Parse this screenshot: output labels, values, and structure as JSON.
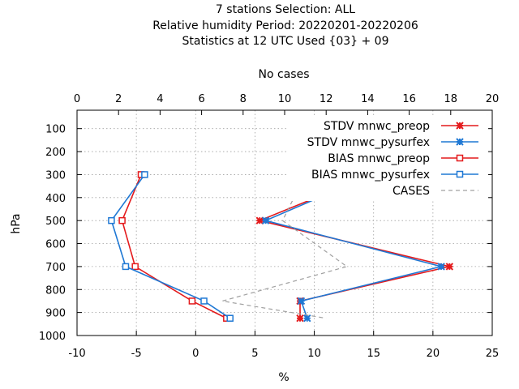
{
  "chart_data": {
    "type": "line",
    "title_lines": [
      "7 stations Selection: ALL",
      "Relative humidity  Period: 20220201-20220206",
      "Statistics at 12 UTC  Used {03} + 09"
    ],
    "xlabel": "%",
    "ylabel": "hPa",
    "x2label": "No cases",
    "xlim": [
      -10,
      25
    ],
    "xticks": [
      -10,
      -5,
      0,
      5,
      10,
      15,
      20,
      25
    ],
    "x2lim": [
      0,
      20
    ],
    "x2ticks": [
      0,
      2,
      4,
      6,
      8,
      10,
      12,
      14,
      16,
      18,
      20
    ],
    "ylim": [
      1000,
      20
    ],
    "yticks": [
      100,
      200,
      300,
      400,
      500,
      600,
      700,
      800,
      900,
      1000
    ],
    "grid": true,
    "legend_position": "top-right",
    "series": [
      {
        "name": "STDV mnwc_preop",
        "color": "#e41a1c",
        "marker": "x",
        "axis": "x",
        "points": [
          [
            14.9,
            300
          ],
          [
            5.4,
            500
          ],
          [
            21.4,
            700
          ],
          [
            8.8,
            850
          ],
          [
            8.8,
            925
          ]
        ]
      },
      {
        "name": "STDV mnwc_pysurfex",
        "color": "#1f78d4",
        "marker": "x",
        "axis": "x",
        "points": [
          [
            14.9,
            300
          ],
          [
            5.9,
            500
          ],
          [
            20.7,
            700
          ],
          [
            8.9,
            850
          ],
          [
            9.4,
            925
          ]
        ]
      },
      {
        "name": "BIAS mnwc_preop",
        "color": "#e41a1c",
        "marker": "square",
        "axis": "x",
        "points": [
          [
            -4.6,
            300
          ],
          [
            -6.2,
            500
          ],
          [
            -5.1,
            700
          ],
          [
            -0.3,
            850
          ],
          [
            2.6,
            925
          ]
        ]
      },
      {
        "name": "BIAS mnwc_pysurfex",
        "color": "#1f78d4",
        "marker": "square",
        "axis": "x",
        "points": [
          [
            -4.3,
            300
          ],
          [
            -7.1,
            500
          ],
          [
            -5.9,
            700
          ],
          [
            0.7,
            850
          ],
          [
            2.9,
            925
          ]
        ]
      },
      {
        "name": "CASES",
        "color": "#a0a0a0",
        "marker": "none",
        "dashed": true,
        "axis": "x2",
        "points": [
          [
            11,
            300
          ],
          [
            9.9,
            500
          ],
          [
            13,
            700
          ],
          [
            7,
            850
          ],
          [
            12,
            925
          ]
        ]
      }
    ]
  }
}
